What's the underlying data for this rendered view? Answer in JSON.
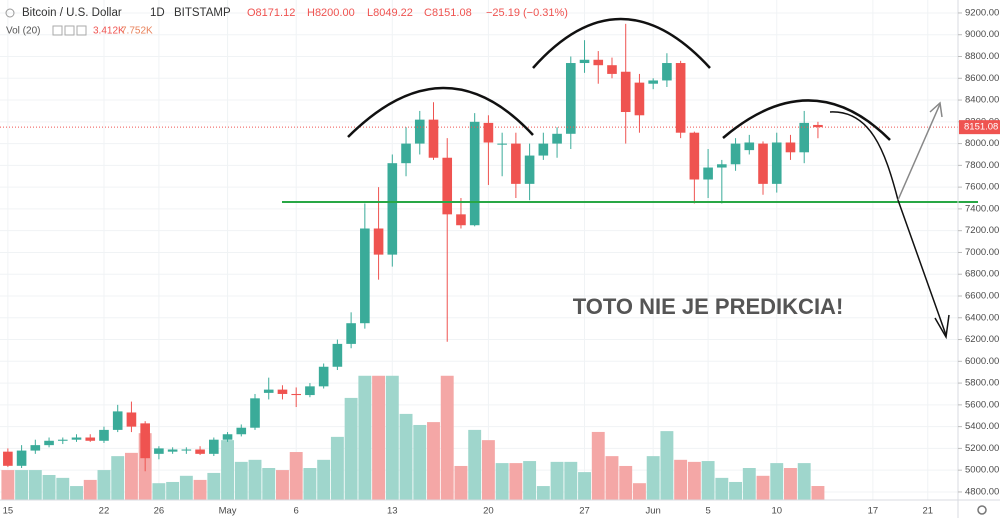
{
  "chart_data": {
    "type": "candlestick",
    "header": {
      "symbol": "Bitcoin / U.S. Dollar",
      "interval": "1D",
      "exchange": "BITSTAMP",
      "open": "O8171.12",
      "high": "H8200.00",
      "low": "L8049.22",
      "close": "C8151.08",
      "change": "−25.19 (−0.31%)",
      "volume_title": "Vol (20)",
      "volume_last": "3.412K",
      "volume_ma": "7.752K"
    },
    "annotation": "TOTO NIE JE PREDIKCIA!",
    "last_price_label": "8151.08",
    "up_color": "#3aab99",
    "down_color": "#ef5350",
    "volume_up_color": "#9fd6cc",
    "volume_down_color": "#f4a7a6",
    "grid": true,
    "categories": [
      "15",
      null,
      null,
      null,
      null,
      null,
      null,
      "22",
      null,
      null,
      null,
      "26",
      null,
      null,
      null,
      null,
      "May",
      null,
      null,
      null,
      null,
      "6",
      null,
      null,
      null,
      null,
      null,
      null,
      "13",
      null,
      null,
      null,
      null,
      null,
      null,
      "20",
      null,
      null,
      null,
      null,
      null,
      null,
      "27",
      null,
      null,
      null,
      null,
      "Jun",
      null,
      null,
      null,
      "5",
      null,
      null,
      null,
      null,
      "10",
      null,
      null,
      null,
      null,
      null,
      null,
      "17",
      null,
      null,
      null,
      "21"
    ],
    "open": [
      5170,
      5040,
      5180,
      5230,
      5270,
      5280,
      5300,
      5270,
      5370,
      5530,
      5430,
      5150,
      5170,
      5180,
      5190,
      5150,
      5280,
      5330,
      5390,
      5710,
      5740,
      5700,
      5690,
      5770,
      5950,
      6160,
      6350,
      7220,
      6980,
      7820,
      8000,
      8220,
      7870,
      7350,
      7250,
      8190,
      7990,
      8000,
      7630,
      7890,
      8000,
      8090,
      8740,
      8770,
      8720,
      8660,
      8560,
      8550,
      8580,
      8740,
      8100,
      7670,
      7780,
      7810,
      7940,
      8000,
      7630,
      8010,
      7920,
      8171.12,
      null,
      null,
      null,
      null,
      null,
      null,
      null,
      null
    ],
    "high": [
      5200,
      5230,
      5280,
      5300,
      5300,
      5330,
      5330,
      5400,
      5600,
      5630,
      5450,
      5220,
      5210,
      5210,
      5220,
      5300,
      5350,
      5420,
      5700,
      5850,
      5780,
      5760,
      5800,
      5980,
      6200,
      6450,
      7450,
      7600,
      7900,
      8150,
      8300,
      8380,
      8050,
      7500,
      8280,
      8260,
      8100,
      8100,
      8000,
      8100,
      8150,
      8800,
      8950,
      8850,
      8790,
      9100,
      8640,
      8600,
      8830,
      8760,
      8110,
      7950,
      7850,
      8050,
      8080,
      8020,
      8100,
      8080,
      8300,
      8200,
      null,
      null,
      null,
      null,
      null,
      null,
      null,
      null
    ],
    "low": [
      5030,
      5020,
      5150,
      5210,
      5240,
      5260,
      5260,
      5250,
      5350,
      5350,
      4990,
      5100,
      5150,
      5150,
      5140,
      5130,
      5260,
      5310,
      5370,
      5650,
      5650,
      5580,
      5670,
      5750,
      5920,
      6120,
      6300,
      6750,
      6870,
      7700,
      7900,
      7850,
      6180,
      7220,
      7240,
      7620,
      7700,
      7500,
      7480,
      7850,
      7870,
      7950,
      8650,
      8550,
      8600,
      8000,
      8100,
      8500,
      8520,
      8050,
      7450,
      7500,
      7450,
      7750,
      7900,
      7530,
      7550,
      7850,
      7820,
      8049.22,
      null,
      null,
      null,
      null,
      null,
      null,
      null,
      null
    ],
    "close": [
      5040,
      5180,
      5230,
      5270,
      5280,
      5300,
      5270,
      5370,
      5540,
      5400,
      5110,
      5200,
      5190,
      5190,
      5150,
      5280,
      5330,
      5390,
      5660,
      5740,
      5700,
      5690,
      5770,
      5950,
      6160,
      6350,
      7220,
      6980,
      7820,
      8000,
      8220,
      7870,
      7350,
      7250,
      8200,
      8010,
      8000,
      7630,
      7890,
      8000,
      8090,
      8740,
      8770,
      8720,
      8640,
      8290,
      8260,
      8580,
      8740,
      8100,
      7670,
      7780,
      7810,
      8000,
      8010,
      7630,
      8010,
      7920,
      8190,
      8151.08,
      null,
      null,
      null,
      null,
      null,
      null,
      null,
      null
    ],
    "volume": [
      7.3,
      7.3,
      7.3,
      6.1,
      5.4,
      3.4,
      4.9,
      7.3,
      10.7,
      11.5,
      16.3,
      4.1,
      4.4,
      5.9,
      4.9,
      6.6,
      14.6,
      9.3,
      9.8,
      7.8,
      7.3,
      11.7,
      7.8,
      9.8,
      15.4,
      24.9,
      30.3,
      30.3,
      30.3,
      21.0,
      18.3,
      19.0,
      30.3,
      8.3,
      17.1,
      14.6,
      9.0,
      9.0,
      9.5,
      3.4,
      9.3,
      9.3,
      6.8,
      16.6,
      10.7,
      8.3,
      4.1,
      10.7,
      16.8,
      9.8,
      9.3,
      9.5,
      5.4,
      4.4,
      7.8,
      5.9,
      9.0,
      7.8,
      9.0,
      3.412,
      null,
      null,
      null,
      null,
      null,
      null,
      null,
      null
    ],
    "ylim": [
      4726,
      9319
    ],
    "yticks": [
      {
        "value": 4800,
        "label": "4800.00"
      },
      {
        "value": 5000,
        "label": "5000.00"
      },
      {
        "value": 5200,
        "label": "5200.00"
      },
      {
        "value": 5400,
        "label": "5400.00"
      },
      {
        "value": 5600,
        "label": "5600.00"
      },
      {
        "value": 5800,
        "label": "5800.00"
      },
      {
        "value": 6000,
        "label": "6000.00"
      },
      {
        "value": 6200,
        "label": "6200.00"
      },
      {
        "value": 6400,
        "label": "6400.00"
      },
      {
        "value": 6600,
        "label": "6600.00"
      },
      {
        "value": 6800,
        "label": "6800.00"
      },
      {
        "value": 7000,
        "label": "7000.00"
      },
      {
        "value": 7200,
        "label": "7200.00"
      },
      {
        "value": 7400,
        "label": "7400.00"
      },
      {
        "value": 7600,
        "label": "7600.00"
      },
      {
        "value": 7800,
        "label": "7800.00"
      },
      {
        "value": 8000,
        "label": "8000.00"
      },
      {
        "value": 8200,
        "label": "8200.00"
      },
      {
        "value": 8400,
        "label": "8400.00"
      },
      {
        "value": 8600,
        "label": "8600.00"
      },
      {
        "value": 8800,
        "label": "8800.00"
      },
      {
        "value": 9000,
        "label": "9000.00"
      },
      {
        "value": 9200,
        "label": "9200.00"
      }
    ]
  }
}
